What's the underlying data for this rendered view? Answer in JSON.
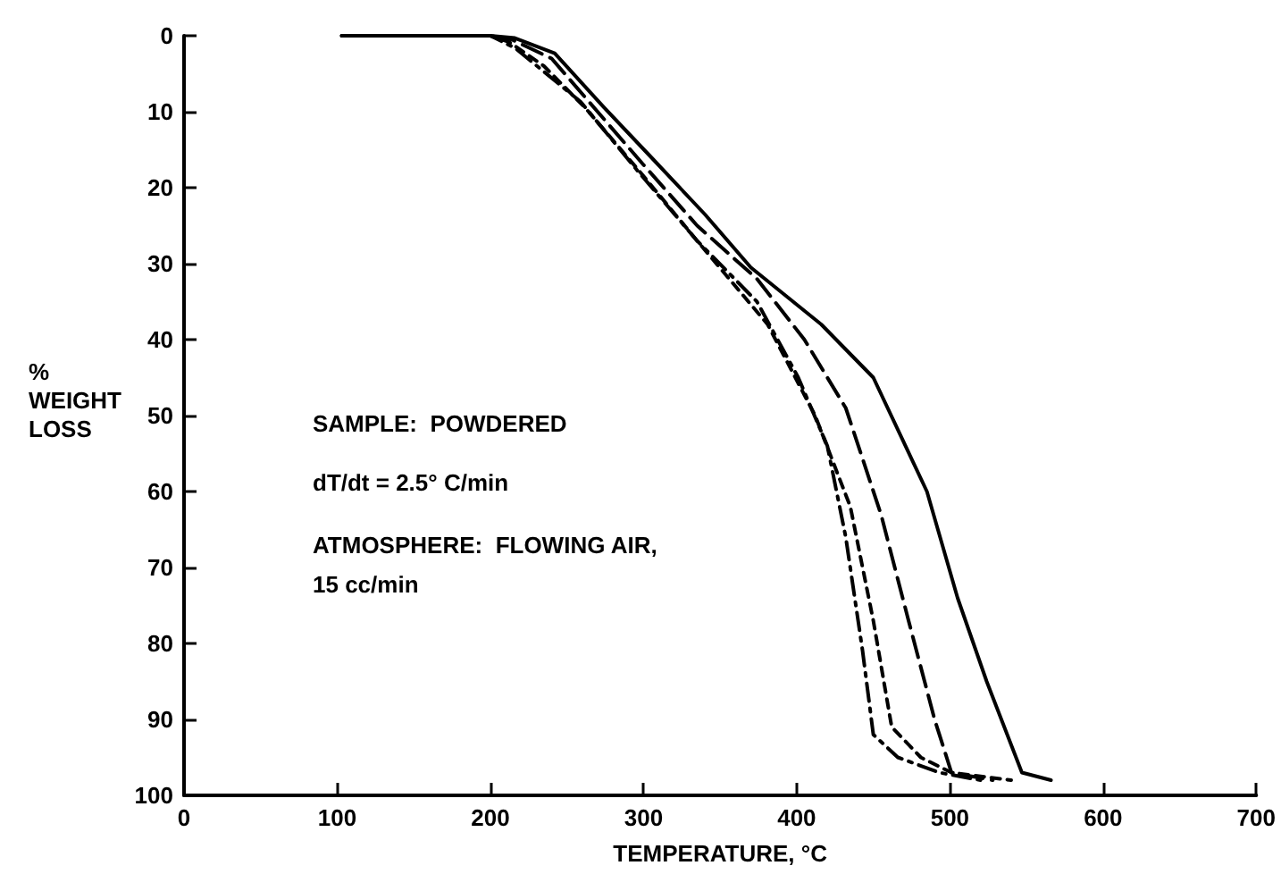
{
  "chart_data": {
    "type": "line",
    "xlabel": "TEMPERATURE, °C",
    "ylabel": "%\nWEIGHT\nLOSS",
    "annotations": [
      "SAMPLE:  POWDERED",
      "dT/dt = 2.5° C/min",
      "ATMOSPHERE:  FLOWING AIR,\n15 cc/min"
    ],
    "xlim": [
      0,
      700
    ],
    "xticks": [
      0,
      100,
      200,
      300,
      400,
      500,
      600,
      700
    ],
    "ylim": [
      100,
      0
    ],
    "yticks": [
      0,
      10,
      20,
      30,
      40,
      50,
      60,
      70,
      80,
      90,
      100
    ],
    "marker": "none",
    "series": [
      {
        "color": "#000000",
        "line_style": "solid",
        "x": [
          103,
          200,
          216,
          242,
          274,
          305,
          340,
          370,
          416,
          450,
          485,
          505,
          524,
          547,
          566
        ],
        "values": [
          0,
          0,
          0.3,
          2.3,
          9.4,
          16,
          23.5,
          30.5,
          38,
          45,
          60,
          74,
          85,
          97,
          98
        ]
      },
      {
        "color": "#000000",
        "line_style": "dashed",
        "x": [
          103,
          200,
          214,
          240,
          270,
          300,
          335,
          374,
          405,
          432,
          455,
          473,
          490,
          501,
          528
        ],
        "values": [
          0,
          0,
          0.5,
          3,
          10,
          17,
          25,
          32,
          40,
          49,
          63,
          77,
          90,
          97,
          98
        ]
      },
      {
        "color": "#000000",
        "line_style": "dotted",
        "x": [
          103,
          200,
          212,
          235,
          262,
          298,
          335,
          381,
          412,
          435,
          450,
          462,
          481,
          501,
          540
        ],
        "values": [
          0,
          0,
          0.8,
          4,
          9.5,
          18,
          27,
          38,
          50,
          62,
          77,
          91,
          95,
          97,
          98
        ]
      },
      {
        "color": "#000000",
        "line_style": "dashdot",
        "x": [
          103,
          200,
          216,
          259,
          297,
          335,
          374,
          401,
          420,
          432,
          443,
          450,
          466,
          493,
          520
        ],
        "values": [
          0,
          0,
          1.6,
          8.7,
          18,
          27,
          35,
          45,
          54,
          66,
          81,
          92,
          95,
          97,
          98
        ]
      }
    ]
  }
}
